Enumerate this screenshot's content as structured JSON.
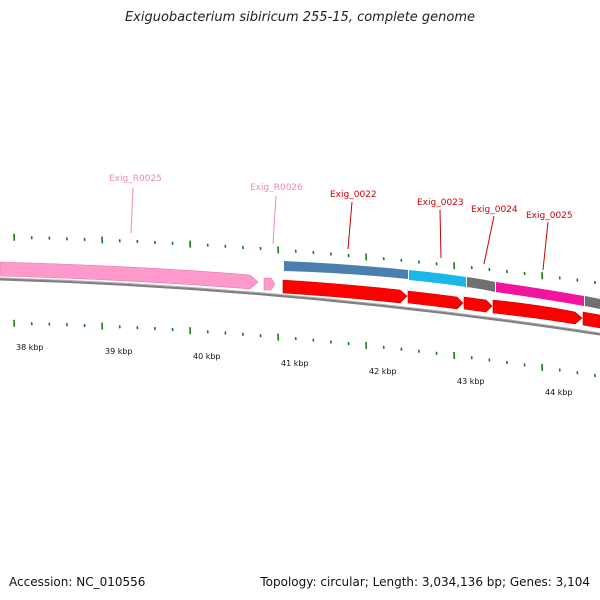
{
  "title": "Exiguobacterium sibiricum 255-15, complete genome",
  "footer": {
    "accession": "Accession: NC_010556",
    "stats": "Topology: circular; Length: 3,034,136 bp; Genes: 3,104"
  },
  "scale": {
    "unit": "kbp",
    "labels": [
      "38 kbp",
      "39 kbp",
      "40 kbp",
      "41 kbp",
      "42 kbp",
      "43 kbp",
      "44 kbp"
    ]
  },
  "features": {
    "rna_labels": [
      "Exig_R0025",
      "Exig_R0026"
    ],
    "gene_labels": [
      "Exig_0022",
      "Exig_0023",
      "Exig_0024",
      "Exig_0025"
    ]
  },
  "colors": {
    "rna": "#ff99cc",
    "gene": "#ff0000",
    "rna_label": "#f088b8",
    "gene_label": "#cc0000",
    "tick": "#1a7a1a",
    "track_blue": "#4a7fb0",
    "track_cyan": "#1ab8e8",
    "track_gray": "#707070",
    "track_magenta": "#f0149e",
    "backbone": "#808080"
  }
}
